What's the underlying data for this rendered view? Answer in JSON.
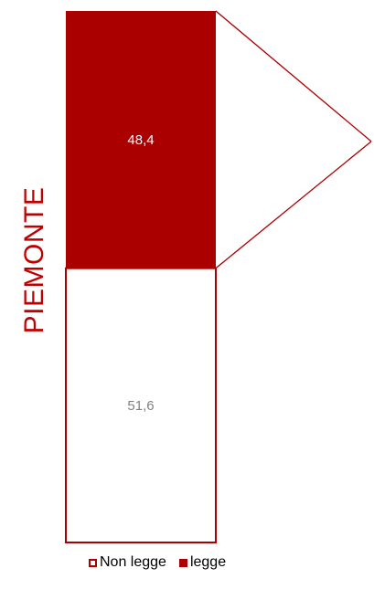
{
  "chart_data": {
    "type": "bar",
    "stacked": true,
    "category": "PIEMONTE",
    "series": [
      {
        "name": "legge",
        "value": 48.4,
        "label": "48,4",
        "color": "#aa0000",
        "label_color": "#ffffff"
      },
      {
        "name": "Non legge",
        "value": 51.6,
        "label": "51,6",
        "color": "#ffffff",
        "border": "#aa0000",
        "label_color": "#808080"
      }
    ],
    "legend": [
      "Non legge",
      "legge"
    ],
    "legend_placement": "bottom",
    "ylim": [
      0,
      100
    ]
  }
}
